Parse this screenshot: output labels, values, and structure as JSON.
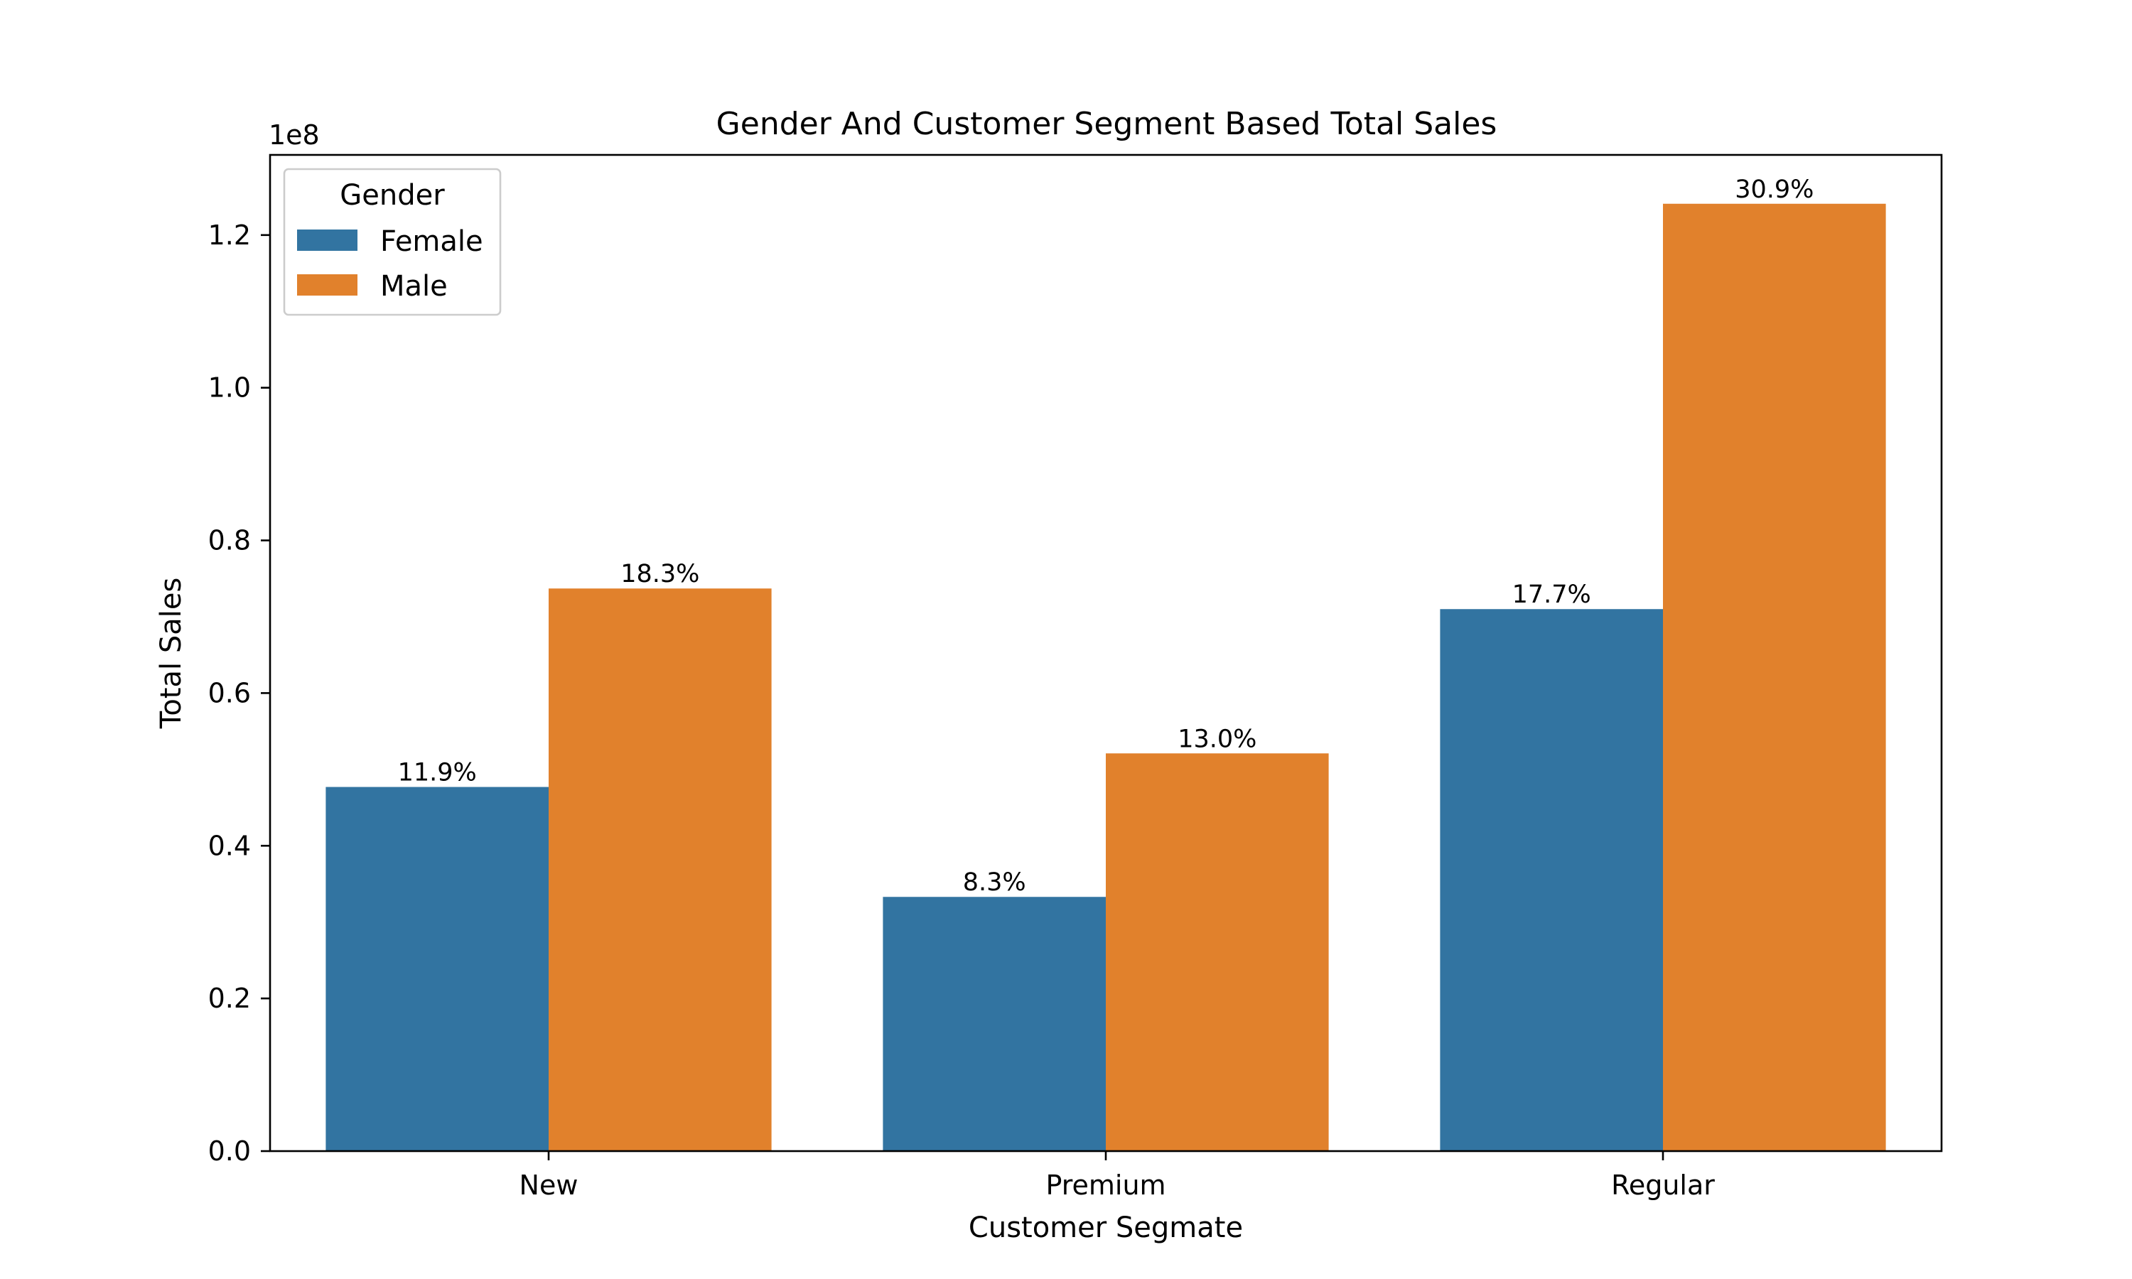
{
  "chart_data": {
    "type": "bar",
    "title": "Gender And Customer Segment Based Total Sales",
    "xlabel": "Customer Segmate",
    "ylabel": "Total Sales",
    "y_offset_label": "1e8",
    "categories": [
      "New",
      "Premium",
      "Regular"
    ],
    "series": [
      {
        "name": "Female",
        "color": "#3274a1",
        "values": [
          47700000,
          33300000,
          71000000
        ],
        "labels": [
          "11.9%",
          "8.3%",
          "17.7%"
        ]
      },
      {
        "name": "Male",
        "color": "#e1812c",
        "values": [
          73700000,
          52100000,
          124100000
        ],
        "labels": [
          "18.3%",
          "13.0%",
          "30.9%"
        ]
      }
    ],
    "ylim": [
      0,
      130500000
    ],
    "yticks": [
      0,
      20000000,
      40000000,
      60000000,
      80000000,
      100000000,
      120000000
    ],
    "ytick_labels": [
      "0.0",
      "0.2",
      "0.4",
      "0.6",
      "0.8",
      "1.0",
      "1.2"
    ],
    "legend": {
      "title": "Gender",
      "placement": "top-left"
    },
    "grid": false
  }
}
